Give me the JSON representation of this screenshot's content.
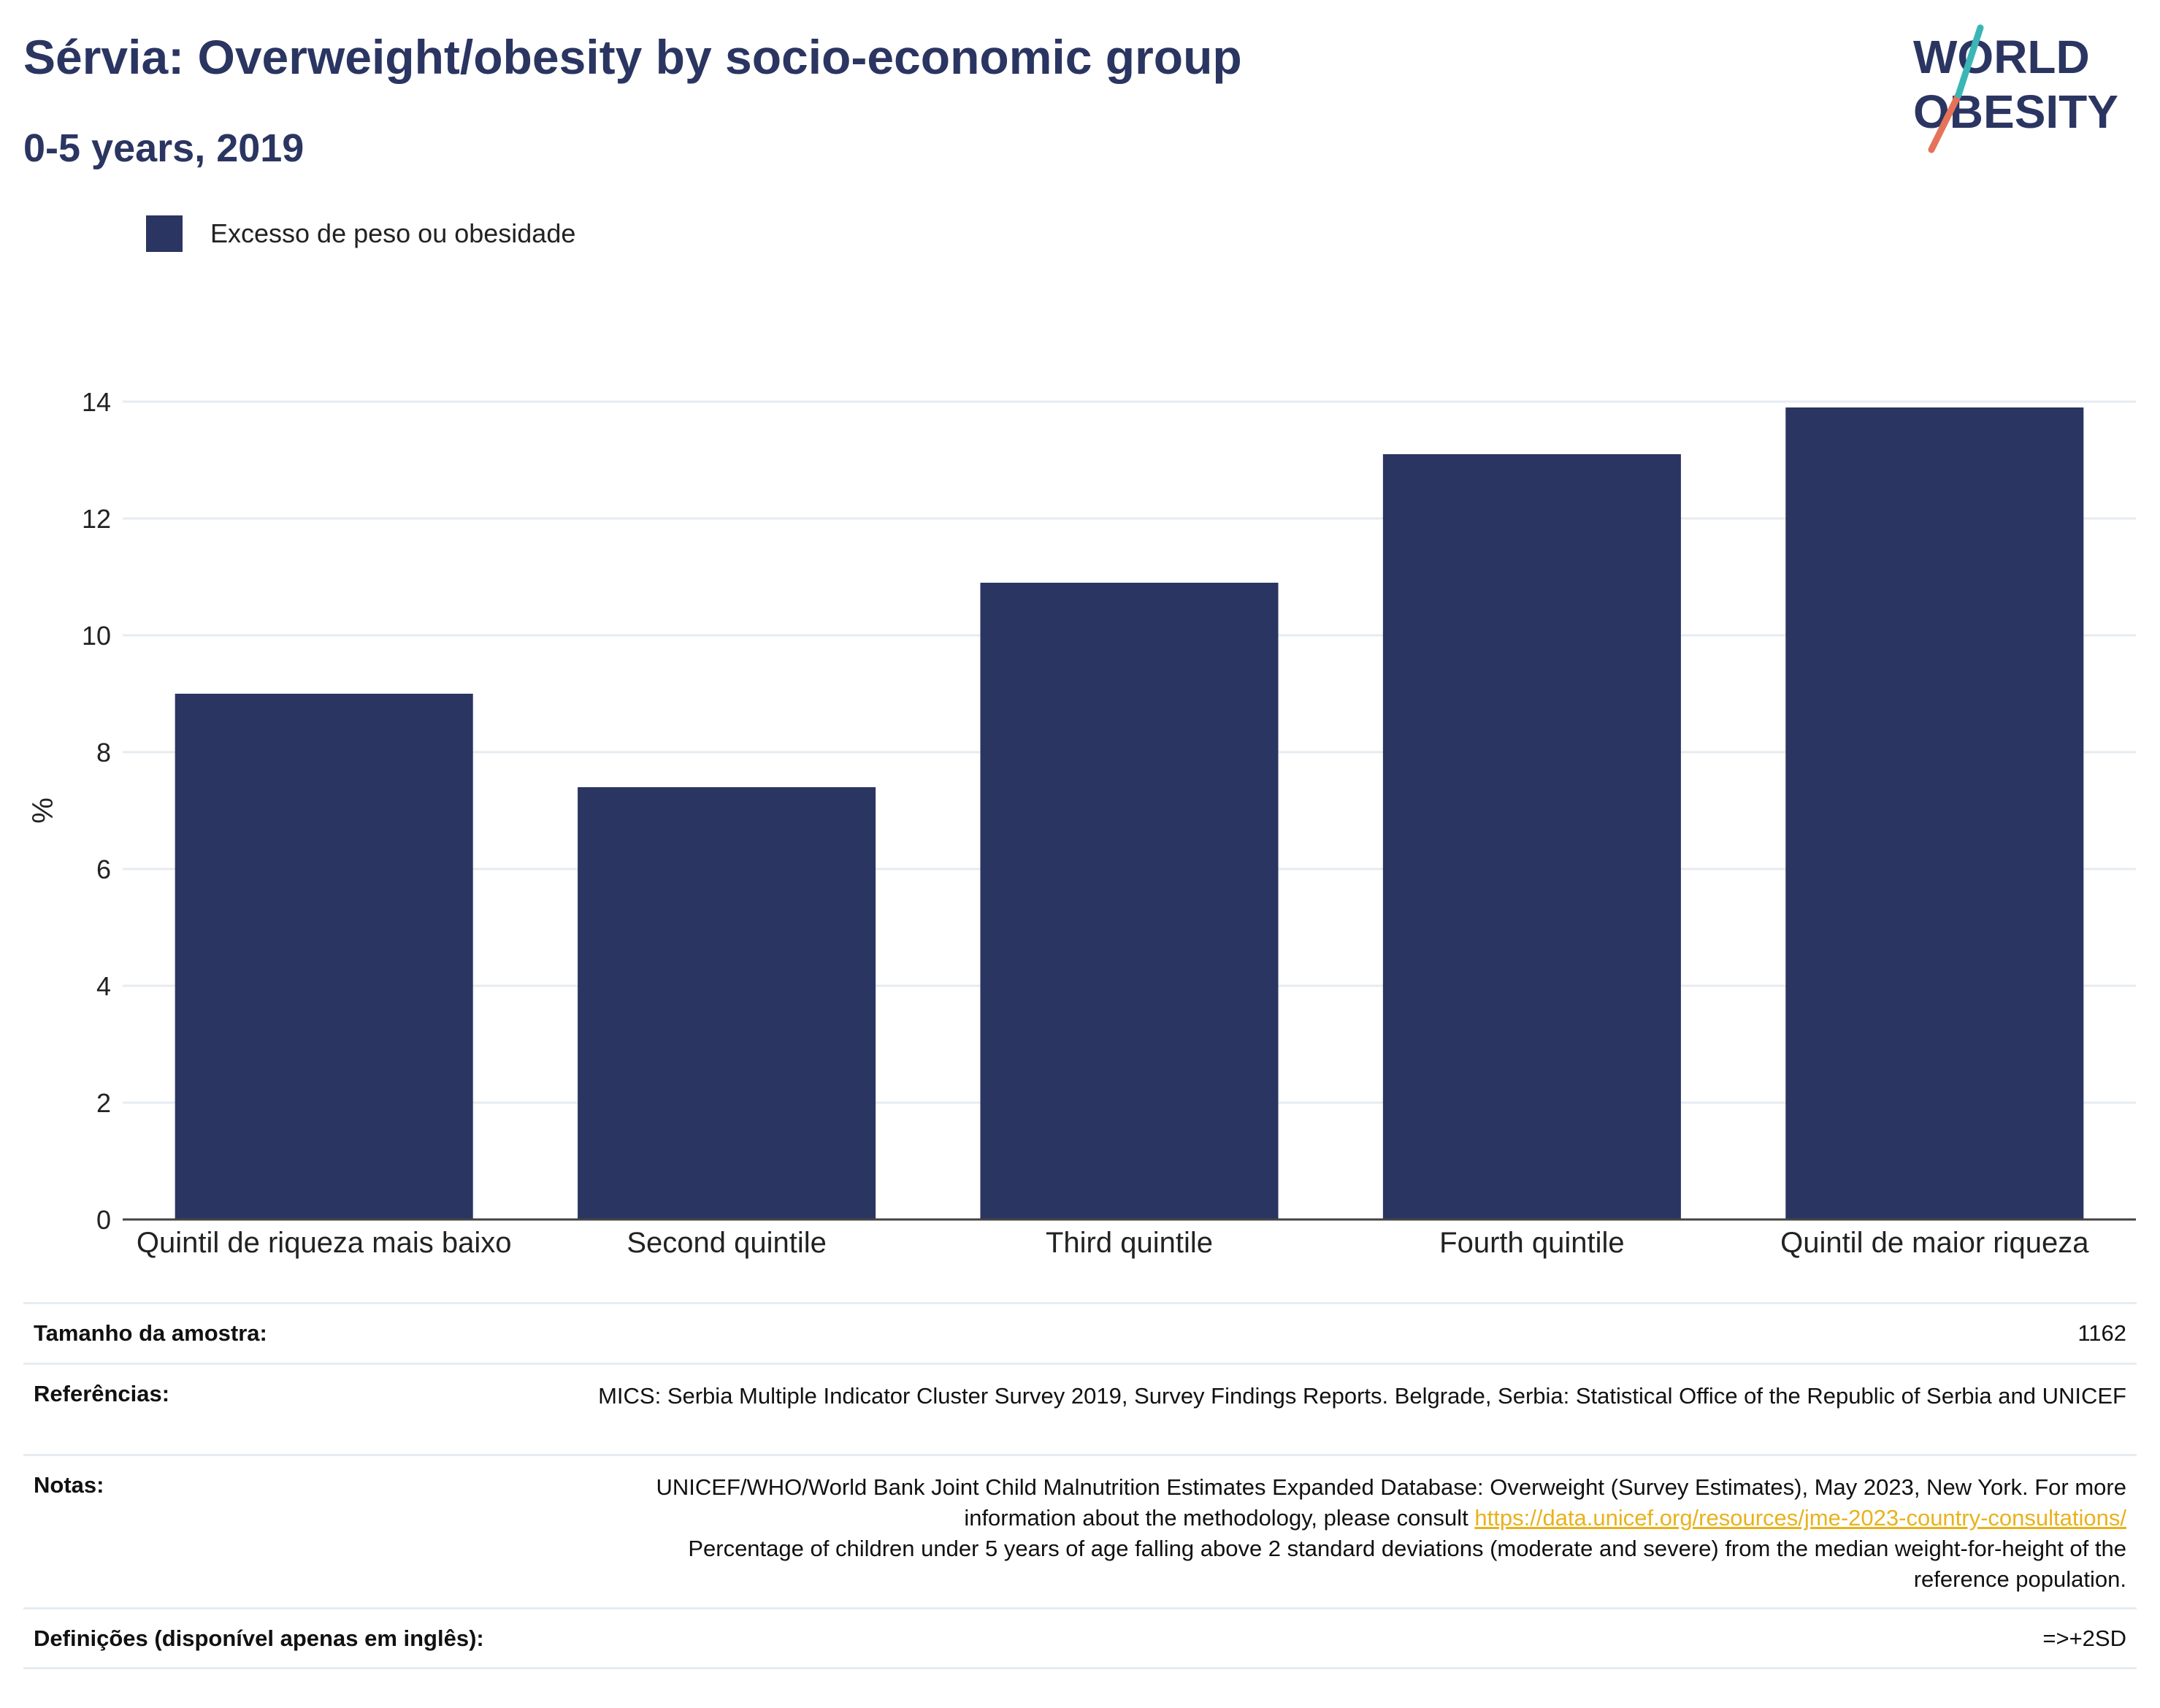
{
  "header": {
    "title": "Sérvia: Overweight/obesity by socio-economic group",
    "subtitle": "0-5 years, 2019"
  },
  "logo": {
    "line1": "WORLD",
    "line2": "OBESITY",
    "colors": [
      "#2b3561",
      "#e5735a",
      "#3bb6b7"
    ]
  },
  "legend": {
    "label": "Excesso de peso ou obesidade",
    "color": "#2b3561"
  },
  "chart_data": {
    "type": "bar",
    "categories": [
      "Quintil de riqueza mais baixo",
      "Second quintile",
      "Third quintile",
      "Fourth quintile",
      "Quintil de maior riqueza"
    ],
    "series": [
      {
        "name": "Excesso de peso ou obesidade",
        "values": [
          9.0,
          7.4,
          10.9,
          13.1,
          13.9
        ],
        "color": "#2b3561"
      }
    ],
    "ylabel": "%",
    "xlabel": "",
    "ylim": [
      0,
      14
    ],
    "yticks": [
      0,
      2,
      4,
      6,
      8,
      10,
      12,
      14
    ],
    "grid": true,
    "legend_position": "top-left"
  },
  "info": {
    "sample_label": "Tamanho da amostra:",
    "sample_value": "1162",
    "references_label": "Referências:",
    "references_value": "MICS: Serbia Multiple Indicator Cluster Survey 2019, Survey Findings Reports. Belgrade, Serbia: Statistical Office of the Republic of Serbia and UNICEF",
    "notes_label": "Notas:",
    "notes_text1": "UNICEF/WHO/World Bank Joint Child Malnutrition Estimates Expanded Database: Overweight (Survey Estimates), May 2023, New York. For more information about the methodology, please consult",
    "notes_link": "https://data.unicef.org/resources/jme-2023-country-consultations/",
    "notes_text2": "Percentage of children under 5 years of age falling above 2 standard deviations (moderate and severe) from the median weight-for-height of the reference population.",
    "definitions_label": "Definições (disponível apenas em inglês):",
    "definitions_value": "=>+2SD"
  }
}
